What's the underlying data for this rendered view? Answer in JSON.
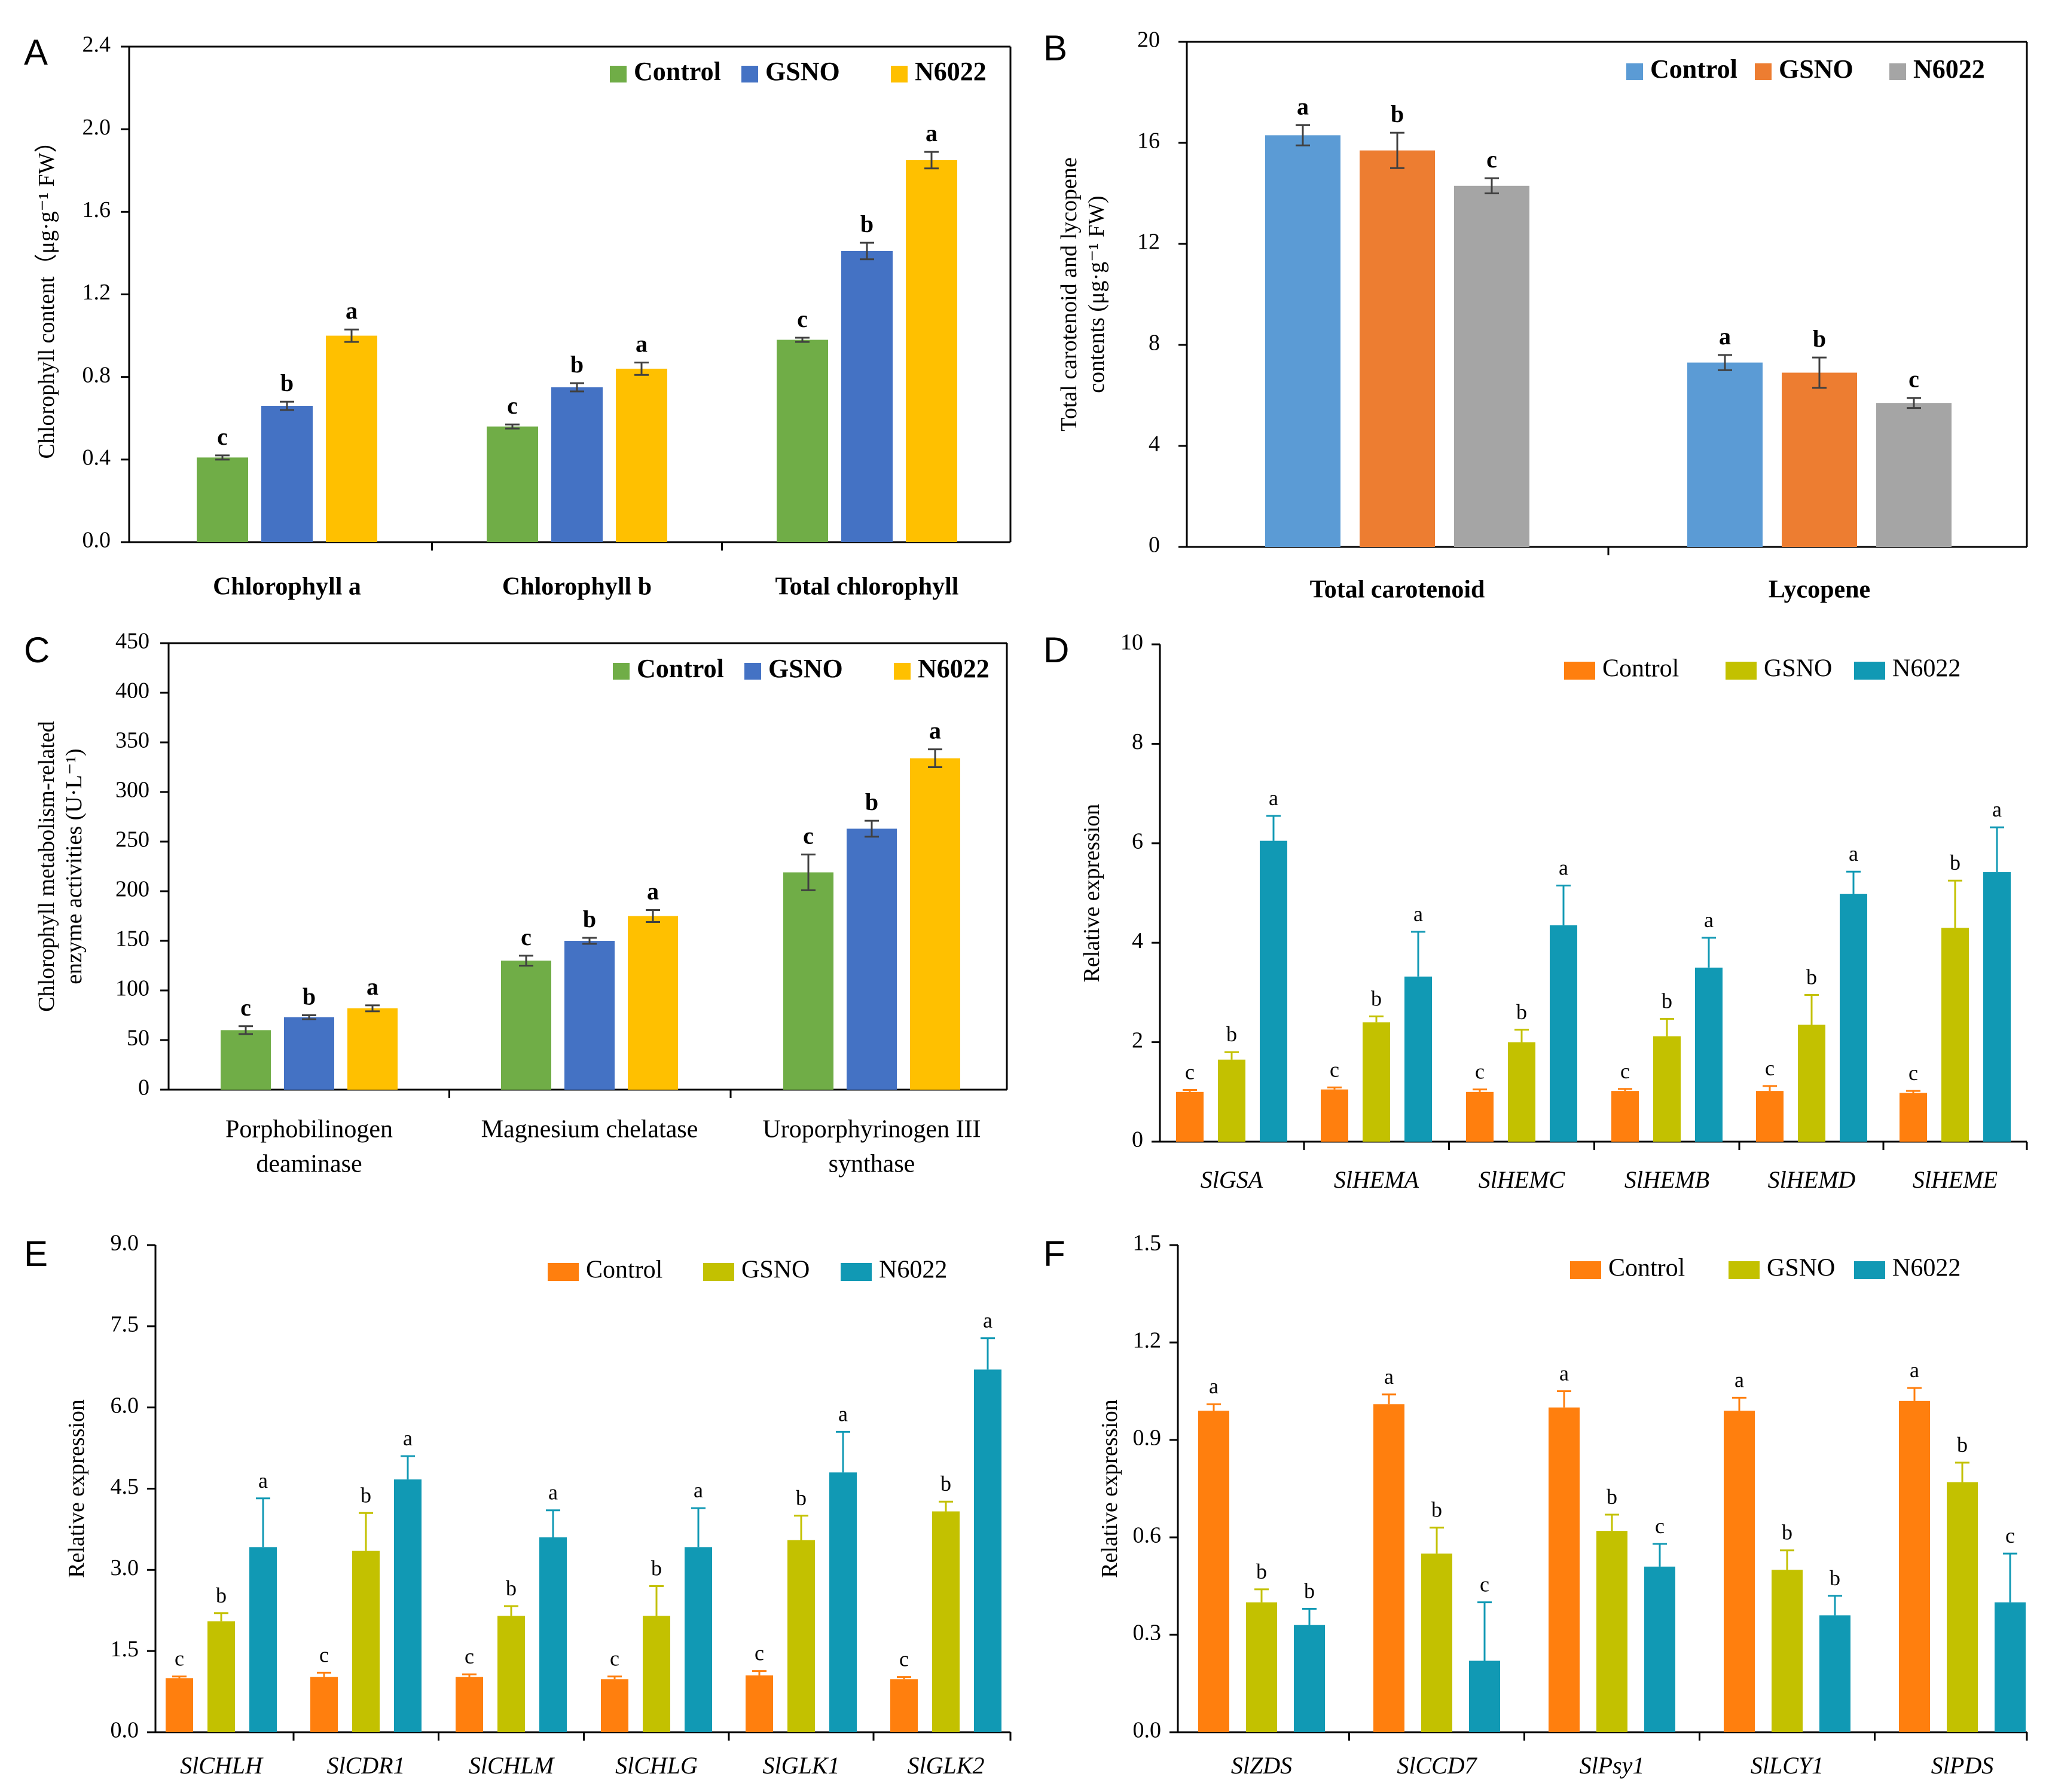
{
  "chart_data": [
    {
      "id": "A",
      "type": "bar",
      "panel_label": "A",
      "categories": [
        "Chlorophyll a",
        "Chlorophyll b",
        "Total chlorophyll"
      ],
      "series": [
        {
          "name": "Control",
          "color": "#70ad47",
          "values": [
            0.41,
            0.56,
            0.98
          ],
          "errors": [
            0.01,
            0.01,
            0.01
          ],
          "letters": [
            "c",
            "c",
            "c"
          ]
        },
        {
          "name": "GSNO",
          "color": "#4472c4",
          "values": [
            0.66,
            0.75,
            1.41
          ],
          "errors": [
            0.02,
            0.02,
            0.04
          ],
          "letters": [
            "b",
            "b",
            "b"
          ]
        },
        {
          "name": "N6022",
          "color": "#ffc000",
          "values": [
            1.0,
            0.84,
            1.85
          ],
          "errors": [
            0.03,
            0.03,
            0.04
          ],
          "letters": [
            "a",
            "a",
            "a"
          ]
        }
      ],
      "ylabel": "Chlorophyll content（μg·g⁻¹ FW）",
      "ylim": [
        0,
        2.4
      ],
      "yticks": [
        "0.0",
        "0.4",
        "0.8",
        "1.2",
        "1.6",
        "2.0",
        "2.4"
      ],
      "legend": "top-right"
    },
    {
      "id": "B",
      "type": "bar",
      "panel_label": "B",
      "categories": [
        "Total carotenoid",
        "Lycopene"
      ],
      "series": [
        {
          "name": "Control",
          "color": "#5b9bd5",
          "values": [
            16.3,
            7.3
          ],
          "errors": [
            0.4,
            0.3
          ],
          "letters": [
            "a",
            "a"
          ]
        },
        {
          "name": "GSNO",
          "color": "#ed7d31",
          "values": [
            15.7,
            6.9
          ],
          "errors": [
            0.7,
            0.6
          ],
          "letters": [
            "b",
            "b"
          ]
        },
        {
          "name": "N6022",
          "color": "#a5a5a5",
          "values": [
            14.3,
            5.7
          ],
          "errors": [
            0.3,
            0.2
          ],
          "letters": [
            "c",
            "c"
          ]
        }
      ],
      "ylabel_lines": [
        "Total carotenoid and lycopene",
        "contents (μg·g⁻¹ FW)"
      ],
      "ylim": [
        0,
        20
      ],
      "yticks": [
        "0",
        "4",
        "8",
        "12",
        "16",
        "20"
      ],
      "legend": "top-right"
    },
    {
      "id": "C",
      "type": "bar",
      "panel_label": "C",
      "categories": [
        "Porphobilinogen deaminase",
        "Magnesium chelatase",
        "Uroporphyrinogen III synthase"
      ],
      "category_lines": [
        [
          "Porphobilinogen",
          "deaminase"
        ],
        [
          "Magnesium chelatase"
        ],
        [
          "Uroporphyrinogen III",
          "synthase"
        ]
      ],
      "series": [
        {
          "name": "Control",
          "color": "#70ad47",
          "values": [
            60,
            130,
            219
          ],
          "errors": [
            4,
            5,
            18
          ],
          "letters": [
            "c",
            "c",
            "c"
          ]
        },
        {
          "name": "GSNO",
          "color": "#4472c4",
          "values": [
            73,
            150,
            263
          ],
          "errors": [
            2,
            3,
            8
          ],
          "letters": [
            "b",
            "b",
            "b"
          ]
        },
        {
          "name": "N6022",
          "color": "#ffc000",
          "values": [
            82,
            175,
            334
          ],
          "errors": [
            3,
            6,
            9
          ],
          "letters": [
            "a",
            "a",
            "a"
          ]
        }
      ],
      "ylabel_lines": [
        "Chlorophyll metabolism-related",
        "enzyme activities (U·L⁻¹)"
      ],
      "ylim": [
        0,
        450
      ],
      "yticks": [
        "0",
        "50",
        "100",
        "150",
        "200",
        "250",
        "300",
        "350",
        "400",
        "450"
      ],
      "legend": "top-right"
    },
    {
      "id": "D",
      "type": "bar",
      "panel_label": "D",
      "categories": [
        "SlGSA",
        "SlHEMA",
        "SlHEMC",
        "SlHEMB",
        "SlHEMD",
        "SlHEME"
      ],
      "series": [
        {
          "name": "Control",
          "color": "#ff7f0e",
          "values": [
            1.0,
            1.05,
            1.0,
            1.02,
            1.02,
            0.98
          ],
          "errors": [
            0.04,
            0.04,
            0.05,
            0.04,
            0.1,
            0.04
          ],
          "letters": [
            "c",
            "c",
            "c",
            "c",
            "c",
            "c"
          ]
        },
        {
          "name": "GSNO",
          "color": "#c3c100",
          "values": [
            1.65,
            2.4,
            2.0,
            2.12,
            2.35,
            4.3
          ],
          "errors": [
            0.15,
            0.12,
            0.25,
            0.35,
            0.6,
            0.95
          ],
          "letters": [
            "b",
            "b",
            "b",
            "b",
            "b",
            "b"
          ]
        },
        {
          "name": "N6022",
          "color": "#1199b4",
          "values": [
            6.05,
            3.32,
            4.35,
            3.5,
            4.98,
            5.42
          ],
          "errors": [
            0.5,
            0.9,
            0.8,
            0.6,
            0.45,
            0.9
          ],
          "letters": [
            "a",
            "a",
            "a",
            "a",
            "a",
            "a"
          ]
        }
      ],
      "ylabel": "Relative expression",
      "ylim": [
        0,
        10
      ],
      "yticks": [
        "0",
        "2",
        "4",
        "6",
        "8",
        "10"
      ],
      "legend": "top-right"
    },
    {
      "id": "E",
      "type": "bar",
      "panel_label": "E",
      "categories": [
        "SlCHLH",
        "SlCDR1",
        "SlCHLM",
        "SlCHLG",
        "SlGLK1",
        "SlGLK2"
      ],
      "series": [
        {
          "name": "Control",
          "color": "#ff7f0e",
          "values": [
            1.0,
            1.02,
            1.02,
            0.98,
            1.05,
            0.98
          ],
          "errors": [
            0.03,
            0.08,
            0.05,
            0.05,
            0.08,
            0.04
          ],
          "letters": [
            "c",
            "c",
            "c",
            "c",
            "c",
            "c"
          ]
        },
        {
          "name": "GSNO",
          "color": "#c3c100",
          "values": [
            2.05,
            3.35,
            2.15,
            2.15,
            3.55,
            4.08
          ],
          "errors": [
            0.15,
            0.7,
            0.18,
            0.55,
            0.45,
            0.18
          ],
          "letters": [
            "b",
            "b",
            "b",
            "b",
            "b",
            "b"
          ]
        },
        {
          "name": "N6022",
          "color": "#1199b4",
          "values": [
            3.42,
            4.67,
            3.6,
            3.42,
            4.8,
            6.7
          ],
          "errors": [
            0.9,
            0.43,
            0.5,
            0.72,
            0.75,
            0.58
          ],
          "letters": [
            "a",
            "a",
            "a",
            "a",
            "a",
            "a"
          ]
        }
      ],
      "ylabel": "Relative expression",
      "ylim": [
        0,
        9
      ],
      "yticks": [
        "0.0",
        "1.5",
        "3.0",
        "4.5",
        "6.0",
        "7.5",
        "9.0"
      ],
      "legend": "top-right"
    },
    {
      "id": "F",
      "type": "bar",
      "panel_label": "F",
      "categories": [
        "SlZDS",
        "SlCCD7",
        "SlPsy1",
        "SlLCY1",
        "SlPDS"
      ],
      "series": [
        {
          "name": "Control",
          "color": "#ff7f0e",
          "values": [
            0.99,
            1.01,
            1.0,
            0.99,
            1.02
          ],
          "errors": [
            0.02,
            0.03,
            0.05,
            0.04,
            0.04
          ],
          "letters": [
            "a",
            "a",
            "a",
            "a",
            "a"
          ]
        },
        {
          "name": "GSNO",
          "color": "#c3c100",
          "values": [
            0.4,
            0.55,
            0.62,
            0.5,
            0.77
          ],
          "errors": [
            0.04,
            0.08,
            0.05,
            0.06,
            0.06
          ],
          "letters": [
            "b",
            "b",
            "b",
            "b",
            "b"
          ]
        },
        {
          "name": "N6022",
          "color": "#1199b4",
          "values": [
            0.33,
            0.22,
            0.51,
            0.36,
            0.4
          ],
          "errors": [
            0.05,
            0.18,
            0.07,
            0.06,
            0.15
          ],
          "letters": [
            "b",
            "c",
            "c",
            "b",
            "c"
          ]
        }
      ],
      "ylabel": "Relative expression",
      "ylim": [
        0,
        1.5
      ],
      "yticks": [
        "0.0",
        "0.3",
        "0.6",
        "0.9",
        "1.2",
        "1.5"
      ],
      "legend": "top-right"
    }
  ]
}
